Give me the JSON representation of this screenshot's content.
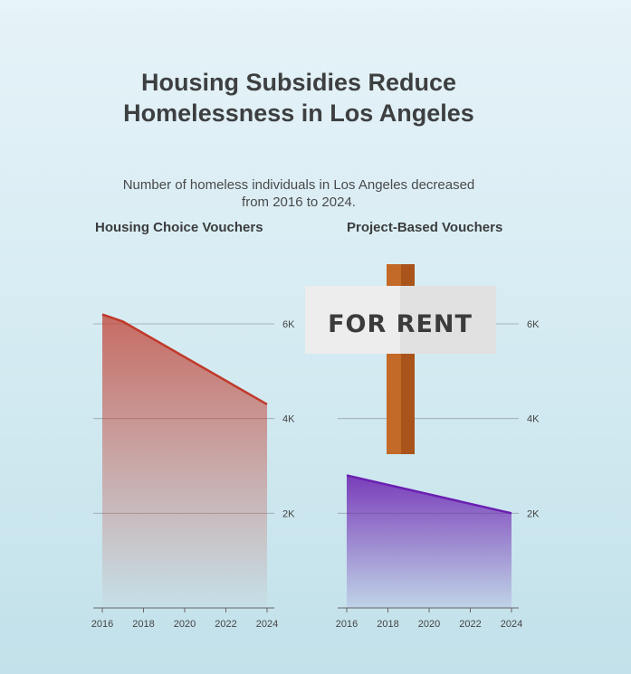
{
  "title": "Housing Subsidies Reduce Homelessness in Los Angeles",
  "subtitle": "Number of homeless individuals in Los Angeles decreased from 2016 to 2024.",
  "sign_text": "FOR RENT",
  "chart_data": [
    {
      "type": "area",
      "title": "Housing Choice Vouchers",
      "x": [
        2016,
        2017,
        2024
      ],
      "y": [
        6200,
        6050,
        4300
      ],
      "xticks": [
        "2016",
        "2018",
        "2020",
        "2022",
        "2024"
      ],
      "yticks": [
        "2K",
        "4K",
        "6K"
      ],
      "xlim": [
        2016,
        2024
      ],
      "ylim": [
        0,
        6000
      ],
      "color": "#c0392b",
      "grid": true
    },
    {
      "type": "area",
      "title": "Project-Based Vouchers",
      "x": [
        2016,
        2024
      ],
      "y": [
        2800,
        2000
      ],
      "xticks": [
        "2016",
        "2018",
        "2020",
        "2022",
        "2024"
      ],
      "yticks": [
        "2K",
        "4K",
        "6K"
      ],
      "xlim": [
        2016,
        2024
      ],
      "ylim": [
        0,
        6000
      ],
      "color": "#6a1fb0",
      "grid": true
    }
  ]
}
